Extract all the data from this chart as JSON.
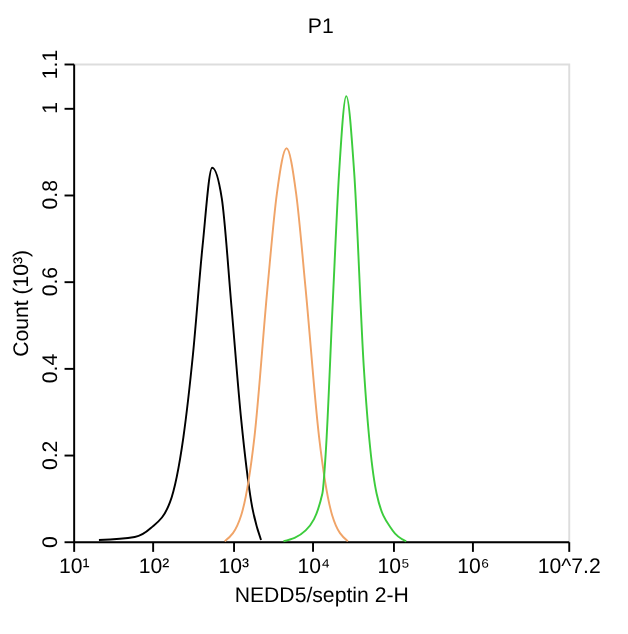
{
  "chart_data": {
    "type": "line",
    "title": "P1",
    "xlabel": "NEDD5/septin 2-H",
    "ylabel": "Count (10³)",
    "log": "x",
    "grid": false,
    "legend": false,
    "marker": "none",
    "line_style": "solid",
    "xlim": [
      10,
      15848932
    ],
    "ylim": [
      0,
      1.1
    ],
    "xticks": [
      {
        "value": 10,
        "label": "10¹"
      },
      {
        "value": 100,
        "label": "10²"
      },
      {
        "value": 1000,
        "label": "10³"
      },
      {
        "value": 10000,
        "label": "10⁴"
      },
      {
        "value": 100000,
        "label": "10⁵"
      },
      {
        "value": 1000000,
        "label": "10⁶"
      },
      {
        "value": 15848932,
        "label": "10^7.2"
      }
    ],
    "yticks": [
      0,
      0.2,
      0.4,
      0.6,
      0.8,
      1,
      1.1
    ],
    "series": [
      {
        "color": "#000000",
        "x": [
          21,
          59,
          93,
          163,
          240,
          316,
          417,
          550,
          725,
          960,
          1270,
          1700,
          2250
        ],
        "values": [
          0.003,
          0.01,
          0.03,
          0.09,
          0.24,
          0.43,
          0.68,
          0.86,
          0.79,
          0.54,
          0.28,
          0.09,
          0.003
        ]
      },
      {
        "color": "#f0a468",
        "x": [
          790,
          1270,
          1860,
          2700,
          3550,
          4700,
          6200,
          8150,
          12000,
          17500,
          27500
        ],
        "values": [
          0,
          0.06,
          0.24,
          0.58,
          0.8,
          0.905,
          0.8,
          0.58,
          0.24,
          0.06,
          0
        ]
      },
      {
        "color": "#3ccc3c",
        "x": [
          4300,
          8150,
          13200,
          14500,
          17800,
          21400,
          26300,
          33000,
          43600,
          63000,
          100000,
          148000
        ],
        "values": [
          0,
          0.025,
          0.11,
          0.2,
          0.55,
          0.85,
          1.025,
          0.85,
          0.4,
          0.11,
          0.025,
          0
        ]
      }
    ]
  }
}
